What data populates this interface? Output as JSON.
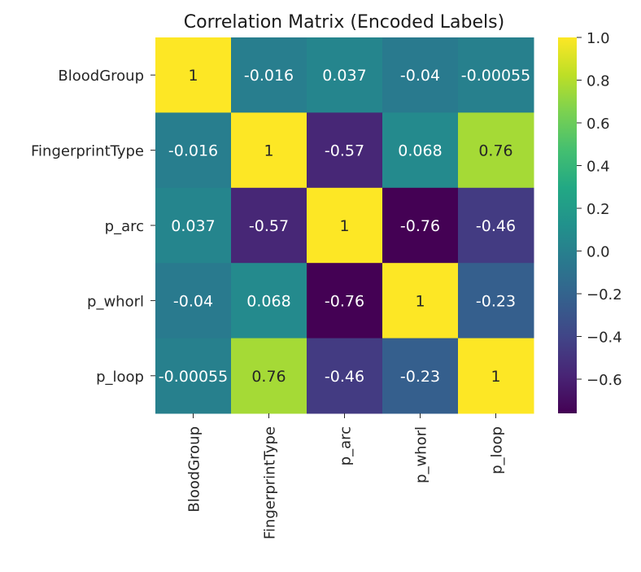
{
  "chart_data": {
    "type": "heatmap",
    "title": "Correlation Matrix (Encoded Labels)",
    "xlabel": "",
    "ylabel": "",
    "row_labels": [
      "BloodGroup",
      "FingerprintType",
      "p_arc",
      "p_whorl",
      "p_loop"
    ],
    "col_labels": [
      "BloodGroup",
      "FingerprintType",
      "p_arc",
      "p_whorl",
      "p_loop"
    ],
    "values": [
      [
        1,
        -0.016,
        0.037,
        -0.04,
        -0.00055
      ],
      [
        -0.016,
        1,
        -0.57,
        0.068,
        0.76
      ],
      [
        0.037,
        -0.57,
        1,
        -0.76,
        -0.46
      ],
      [
        -0.04,
        0.068,
        -0.76,
        1,
        -0.23
      ],
      [
        -0.00055,
        0.76,
        -0.46,
        -0.23,
        1
      ]
    ],
    "cell_labels": [
      [
        "1",
        "-0.016",
        "0.037",
        "-0.04",
        "-0.00055"
      ],
      [
        "-0.016",
        "1",
        "-0.57",
        "0.068",
        "0.76"
      ],
      [
        "0.037",
        "-0.57",
        "1",
        "-0.76",
        "-0.46"
      ],
      [
        "-0.04",
        "0.068",
        "-0.76",
        "1",
        "-0.23"
      ],
      [
        "-0.00055",
        "0.76",
        "-0.46",
        "-0.23",
        "1"
      ]
    ],
    "colormap": "viridis",
    "colorbar": {
      "range": [
        -0.76,
        1.0
      ],
      "ticks": [
        1.0,
        0.8,
        0.6,
        0.4,
        0.2,
        0.0,
        -0.2,
        -0.4,
        -0.6
      ],
      "tick_labels": [
        "1.0",
        "0.8",
        "0.6",
        "0.4",
        "0.2",
        "0.0",
        "−0.2",
        "−0.4",
        "−0.6"
      ]
    }
  }
}
